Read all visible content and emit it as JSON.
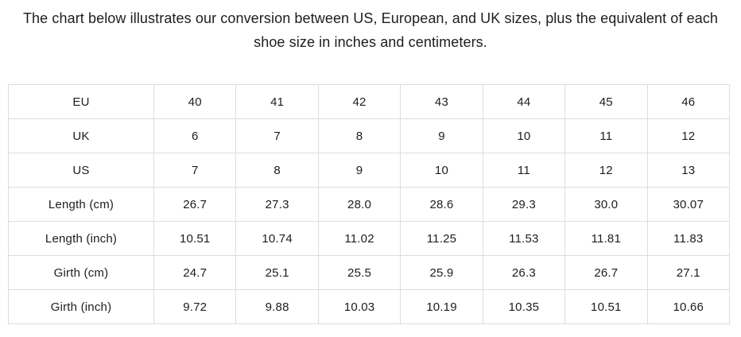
{
  "chart_data": {
    "type": "table",
    "title": "The chart below illustrates our conversion between US, European, and UK sizes, plus the equivalent of each shoe size in inches and centimeters.",
    "layout": {
      "text_color": "#1d1d1d",
      "border_color": "#dddddd",
      "background": "#ffffff"
    },
    "rows": [
      {
        "label": "EU",
        "values": [
          "40",
          "41",
          "42",
          "43",
          "44",
          "45",
          "46"
        ]
      },
      {
        "label": "UK",
        "values": [
          "6",
          "7",
          "8",
          "9",
          "10",
          "11",
          "12"
        ]
      },
      {
        "label": "US",
        "values": [
          "7",
          "8",
          "9",
          "10",
          "11",
          "12",
          "13"
        ]
      },
      {
        "label": "Length (cm)",
        "values": [
          "26.7",
          "27.3",
          "28.0",
          "28.6",
          "29.3",
          "30.0",
          "30.07"
        ]
      },
      {
        "label": "Length (inch)",
        "values": [
          "10.51",
          "10.74",
          "11.02",
          "11.25",
          "11.53",
          "11.81",
          "11.83"
        ]
      },
      {
        "label": "Girth (cm)",
        "values": [
          "24.7",
          "25.1",
          "25.5",
          "25.9",
          "26.3",
          "26.7",
          "27.1"
        ]
      },
      {
        "label": "Girth (inch)",
        "values": [
          "9.72",
          "9.88",
          "10.03",
          "10.19",
          "10.35",
          "10.51",
          "10.66"
        ]
      }
    ]
  }
}
